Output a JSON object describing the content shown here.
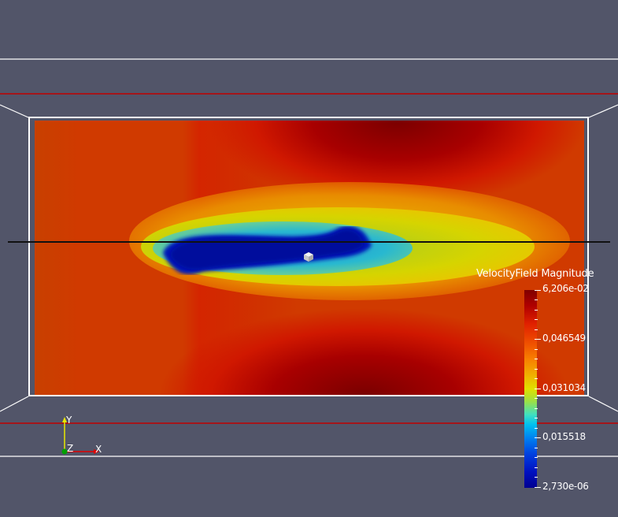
{
  "legend": {
    "title": "VelocityField Magnitude",
    "ticks": [
      "6,206e-02",
      "0,046549",
      "0,031034",
      "0,015518",
      "2,730e-06"
    ]
  },
  "axes": {
    "x_label": "X",
    "y_label": "Y",
    "z_label": "Z"
  },
  "colors": {
    "background": "#525569",
    "frame_lines": "#ffffff",
    "red_lines": "#c00000"
  }
}
